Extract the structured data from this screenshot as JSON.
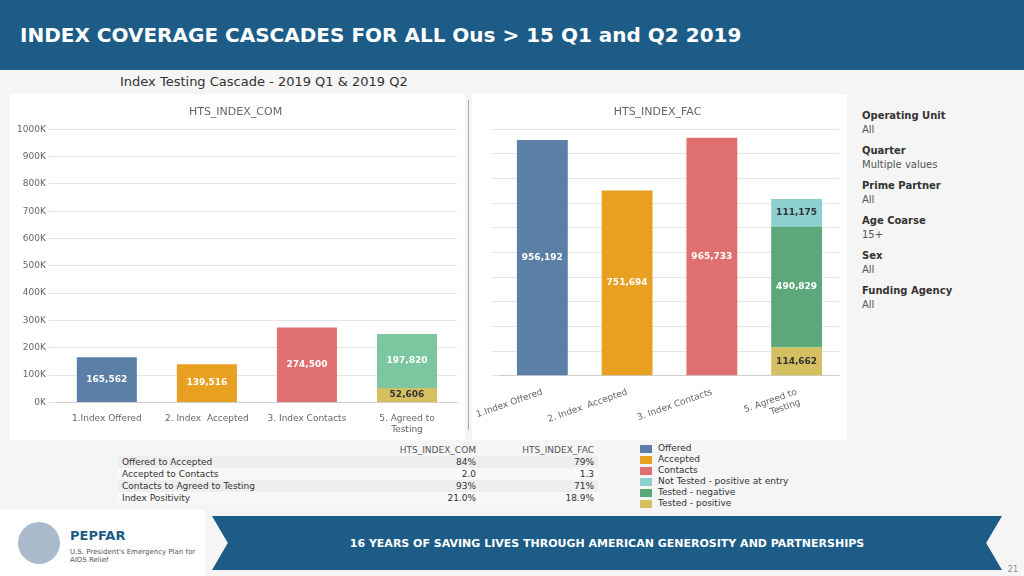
{
  "title": "INDEX COVERAGE CASCADES FOR ALL Ous > 15 Q1 and Q2 2019",
  "subtitle": "Index Testing Cascade - 2019 Q1 & 2019 Q2",
  "footer": {
    "logo": "PEPFAR",
    "logo_caption": "U.S. President's Emergency Plan for AIDS Relief",
    "banner": "16 YEARS OF SAVING LIVES THROUGH AMERICAN GENEROSITY AND PARTNERSHIPS",
    "page": "21"
  },
  "filters": [
    {
      "label": "Operating Unit",
      "value": "All"
    },
    {
      "label": "Quarter",
      "value": "Multiple values"
    },
    {
      "label": "Prime Partner",
      "value": "All"
    },
    {
      "label": "Age Coarse",
      "value": "15+"
    },
    {
      "label": "Sex",
      "value": "All"
    },
    {
      "label": "Funding Agency",
      "value": "All"
    }
  ],
  "table": {
    "columns": [
      "HTS_INDEX_COM",
      "HTS_INDEX_FAC"
    ],
    "rows": [
      {
        "name": "Offered to Accepted",
        "values": [
          "84%",
          "79%"
        ]
      },
      {
        "name": "Accepted to Contacts",
        "values": [
          "2.0",
          "1.3"
        ]
      },
      {
        "name": "Contacts to Agreed to Testing",
        "values": [
          "93%",
          "71%"
        ]
      },
      {
        "name": "Index Positivity",
        "values": [
          "21.0%",
          "18.9%"
        ]
      }
    ]
  },
  "legend_entries": [
    {
      "name": "Offered",
      "color": "#5b7fa6"
    },
    {
      "name": "Accepted",
      "color": "#e8a020"
    },
    {
      "name": "Contacts",
      "color": "#e07070"
    },
    {
      "name": "Not Tested - positive at entry",
      "color": "#8ecfcf"
    },
    {
      "name": "Tested - negative",
      "color": "#5da87a"
    },
    {
      "name": "Tested - positive",
      "color": "#d4c060"
    }
  ],
  "chart_data": [
    {
      "type": "bar",
      "title": "HTS_INDEX_COM",
      "stacked": true,
      "grid": true,
      "data_labels": true,
      "categories": [
        "1.Index Offered",
        "2. Index  Accepted",
        "3. Index Contacts",
        "5. Agreed to\nTesting"
      ],
      "ylim": [
        0,
        1000000
      ],
      "yticks": [
        {
          "value": 0,
          "label": "0K"
        },
        {
          "value": 100000,
          "label": "100K"
        },
        {
          "value": 200000,
          "label": "200K"
        },
        {
          "value": 300000,
          "label": "300K"
        },
        {
          "value": 400000,
          "label": "400K"
        },
        {
          "value": 500000,
          "label": "500K"
        },
        {
          "value": 600000,
          "label": "600K"
        },
        {
          "value": 700000,
          "label": "700K"
        },
        {
          "value": 800000,
          "label": "800K"
        },
        {
          "value": 900000,
          "label": "900K"
        },
        {
          "value": 1000000,
          "label": "1000K"
        }
      ],
      "series": [
        {
          "name": "Offered",
          "color": "#5b7fa6",
          "values": [
            165562,
            null,
            null,
            null
          ],
          "value_labels": [
            "165,562",
            null,
            null,
            null
          ]
        },
        {
          "name": "Accepted",
          "color": "#e8a020",
          "values": [
            null,
            139516,
            null,
            null
          ],
          "value_labels": [
            null,
            "139,516",
            null,
            null
          ]
        },
        {
          "name": "Contacts",
          "color": "#e07070",
          "values": [
            null,
            null,
            274500,
            null
          ],
          "value_labels": [
            null,
            null,
            "274,500",
            null
          ]
        },
        {
          "name": "Tested - positive",
          "color": "#d4c060",
          "values": [
            null,
            null,
            null,
            52606
          ],
          "value_labels": [
            null,
            null,
            null,
            "52,606"
          ]
        },
        {
          "name": "Tested - negative",
          "color": "#7dc7a0",
          "values": [
            null,
            null,
            null,
            197820
          ],
          "value_labels": [
            null,
            null,
            null,
            "197,820"
          ]
        }
      ]
    },
    {
      "type": "bar",
      "title": "HTS_INDEX_FAC",
      "stacked": true,
      "grid": true,
      "data_labels": true,
      "tick_labels": "x",
      "categories": [
        "1.Index Offered",
        "2. Index  Accepted",
        "3. Index Contacts",
        "5. Agreed to\nTesting"
      ],
      "ylim": [
        0,
        1000000
      ],
      "yticks": [
        0,
        100000,
        200000,
        300000,
        400000,
        500000,
        600000,
        700000,
        800000,
        900000,
        1000000
      ],
      "series": [
        {
          "name": "Offered",
          "color": "#5b7fa6",
          "values": [
            956192,
            null,
            null,
            null
          ],
          "value_labels": [
            "956,192",
            null,
            null,
            null
          ]
        },
        {
          "name": "Accepted",
          "color": "#e8a020",
          "values": [
            null,
            751694,
            null,
            null
          ],
          "value_labels": [
            null,
            "751,694",
            null,
            null
          ]
        },
        {
          "name": "Contacts",
          "color": "#e07070",
          "values": [
            null,
            null,
            965733,
            null
          ],
          "value_labels": [
            null,
            null,
            "965,733",
            null
          ]
        },
        {
          "name": "Tested - positive",
          "color": "#d4c060",
          "values": [
            null,
            null,
            null,
            114662
          ],
          "value_labels": [
            null,
            null,
            null,
            "114,662"
          ]
        },
        {
          "name": "Tested - negative",
          "color": "#5da87a",
          "values": [
            null,
            null,
            null,
            490829
          ],
          "value_labels": [
            null,
            null,
            null,
            "490,829"
          ]
        },
        {
          "name": "Not Tested - positive at entry",
          "color": "#8ecfcf",
          "values": [
            null,
            null,
            null,
            111175
          ],
          "value_labels": [
            null,
            null,
            null,
            "111,175"
          ]
        }
      ]
    }
  ]
}
